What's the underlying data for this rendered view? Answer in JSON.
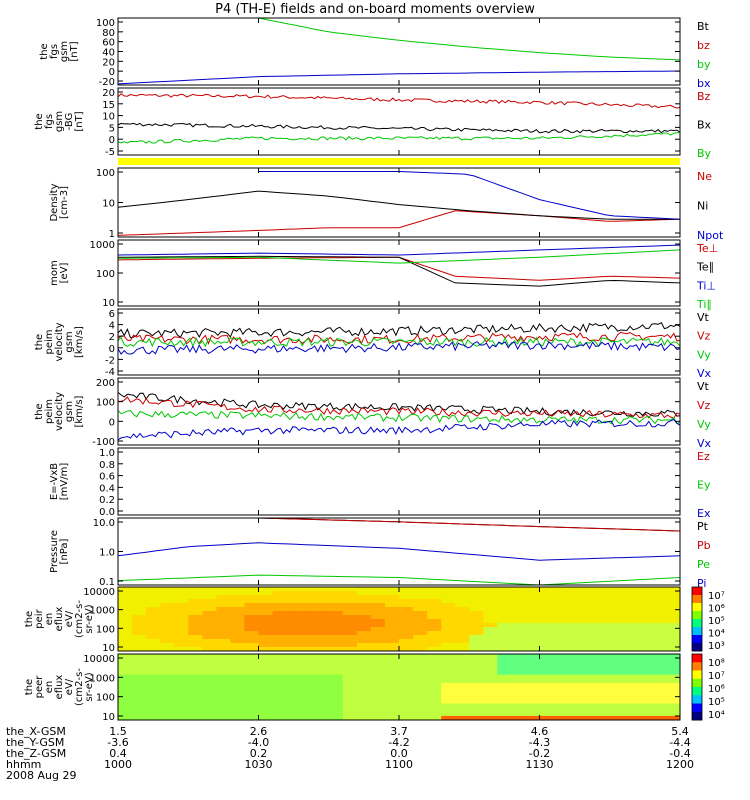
{
  "title": "P4 (TH-E) fields and on-board moments overview",
  "chart_data": [
    {
      "type": "line",
      "ylabel": [
        "the",
        "fgs",
        "gsm",
        "[nT]"
      ],
      "yticks": [
        "100",
        "80",
        "60",
        "40",
        "20",
        "0",
        "-20"
      ],
      "ylim": [
        -20,
        100
      ],
      "series": [
        {
          "name": "Bt",
          "color": "#000000",
          "x": [
            10.0,
            12.0
          ],
          "y": [
            null,
            null
          ]
        },
        {
          "name": "bz",
          "color": "#c80000",
          "x": [
            10.0,
            12.0
          ],
          "y": [
            null,
            null
          ]
        },
        {
          "name": "by",
          "color": "#00c800",
          "x": [
            10.5,
            10.75,
            11.0,
            11.25,
            11.5,
            11.75,
            12.0
          ],
          "y": [
            100,
            75,
            60,
            48,
            38,
            30,
            25
          ]
        },
        {
          "name": "bx",
          "color": "#0000c8",
          "x": [
            10.0,
            10.5,
            11.0,
            11.5,
            12.0
          ],
          "y": [
            -18,
            -5,
            0,
            3,
            5
          ]
        }
      ]
    },
    {
      "type": "line",
      "ylabel": [
        "the",
        "fgs",
        "gsm",
        "-BG",
        "[nT]"
      ],
      "yticks": [
        "20",
        "15",
        "10",
        "5",
        "0",
        "-5"
      ],
      "ylim": [
        -8,
        20
      ],
      "series": [
        {
          "name": "Bz",
          "color": "#c80000",
          "x": [
            10.0,
            10.5,
            11.0,
            11.5,
            12.0
          ],
          "y": [
            17,
            16.5,
            15,
            14,
            12
          ]
        },
        {
          "name": "Bx",
          "color": "#000000",
          "x": [
            10.0,
            10.5,
            11.0,
            11.5,
            12.0
          ],
          "y": [
            5,
            4,
            3,
            2,
            2
          ]
        },
        {
          "name": "By",
          "color": "#00c800",
          "x": [
            10.0,
            10.5,
            11.0,
            11.5,
            12.0
          ],
          "y": [
            -3,
            -1,
            -1,
            -1,
            1
          ]
        }
      ]
    },
    {
      "type": "line",
      "ylabel": [
        "Density",
        "[cm-3]"
      ],
      "yticks": [
        "100",
        "10",
        "1"
      ],
      "yscale": "log",
      "ylim": [
        0.7,
        200
      ],
      "series": [
        {
          "name": "Ne",
          "color": "#c80000",
          "x": [
            10.0,
            10.5,
            10.75,
            11.0,
            11.2,
            11.5,
            11.75,
            12.0
          ],
          "y": [
            0.8,
            1.2,
            1.5,
            1.5,
            6,
            4,
            2.5,
            3
          ]
        },
        {
          "name": "Ni",
          "color": "#000000",
          "x": [
            10.0,
            10.25,
            10.5,
            10.75,
            11.0,
            11.25,
            11.5,
            11.75,
            12.0
          ],
          "y": [
            8,
            15,
            30,
            20,
            10,
            6,
            4,
            3,
            3
          ]
        },
        {
          "name": "Npot",
          "color": "#0000c8",
          "x": [
            10.5,
            11.0,
            11.25,
            11.5,
            11.75,
            12.0
          ],
          "y": [
            150,
            150,
            120,
            15,
            4,
            3
          ]
        }
      ]
    },
    {
      "type": "line",
      "ylabel": [
        "mom",
        "[eV]"
      ],
      "yticks": [
        "1000",
        "100",
        "10"
      ],
      "yscale": "log",
      "ylim": [
        10,
        1000
      ],
      "series": [
        {
          "name": "Te⊥",
          "color": "#c80000",
          "x": [
            10.0,
            10.5,
            11.0,
            11.2,
            11.5,
            11.75,
            12.0
          ],
          "y": [
            250,
            280,
            300,
            80,
            60,
            80,
            70
          ]
        },
        {
          "name": "Te∥",
          "color": "#000000",
          "x": [
            10.0,
            10.5,
            11.0,
            11.2,
            11.5,
            11.75,
            12.0
          ],
          "y": [
            300,
            320,
            300,
            50,
            40,
            60,
            50
          ]
        },
        {
          "name": "Ti⊥",
          "color": "#0000c8",
          "x": [
            10.0,
            10.5,
            11.0,
            11.5,
            12.0
          ],
          "y": [
            350,
            400,
            350,
            500,
            700
          ]
        },
        {
          "name": "Ti∥",
          "color": "#00c800",
          "x": [
            10.0,
            10.5,
            11.0,
            11.5,
            12.0
          ],
          "y": [
            280,
            300,
            200,
            300,
            500
          ]
        }
      ]
    },
    {
      "type": "line",
      "ylabel": [
        "the",
        "peim",
        "velocity",
        "gsm",
        "[km/s]"
      ],
      "yticks": [
        "6",
        "4",
        "2",
        "0",
        "-2",
        "-4"
      ],
      "ylim": [
        -5,
        7
      ],
      "series": [
        {
          "name": "Vt",
          "color": "#000000",
          "x": [
            10.0,
            11.0,
            11.5,
            12.0
          ],
          "y": [
            2.5,
            3.0,
            3.5,
            4
          ]
        },
        {
          "name": "Vz",
          "color": "#c80000",
          "x": [
            10.0,
            11.0,
            11.5,
            12.0
          ],
          "y": [
            1.5,
            1.5,
            2.0,
            2
          ]
        },
        {
          "name": "Vy",
          "color": "#00c800",
          "x": [
            10.0,
            11.0,
            11.5,
            12.0
          ],
          "y": [
            1.0,
            1.0,
            1.0,
            1
          ]
        },
        {
          "name": "Vx",
          "color": "#0000c8",
          "x": [
            10.0,
            11.0,
            11.5,
            12.0
          ],
          "y": [
            -0.5,
            0.0,
            0.5,
            0
          ]
        }
      ]
    },
    {
      "type": "line",
      "ylabel": [
        "the",
        "peim",
        "velocity",
        "gsm",
        "[km/s]"
      ],
      "yticks": [
        "200",
        "100",
        "0",
        "-100"
      ],
      "ylim": [
        -110,
        210
      ],
      "series": [
        {
          "name": "Vt",
          "color": "#000000",
          "x": [
            10.0,
            10.5,
            11.0,
            11.5,
            12.0
          ],
          "y": [
            130,
            80,
            70,
            50,
            40
          ]
        },
        {
          "name": "Vz",
          "color": "#c80000",
          "x": [
            10.0,
            10.5,
            11.0,
            11.5,
            12.0
          ],
          "y": [
            110,
            60,
            50,
            40,
            30
          ]
        },
        {
          "name": "Vy",
          "color": "#00c800",
          "x": [
            10.0,
            10.5,
            11.0,
            11.5,
            12.0
          ],
          "y": [
            40,
            30,
            20,
            10,
            10
          ]
        },
        {
          "name": "Vx",
          "color": "#0000c8",
          "x": [
            10.0,
            10.5,
            11.0,
            11.5,
            12.0
          ],
          "y": [
            -70,
            -40,
            -40,
            -10,
            -5
          ]
        }
      ]
    },
    {
      "type": "line",
      "ylabel": [
        "E=-VxB",
        "[mV/m]"
      ],
      "yticks": [
        "1.0",
        "0.8",
        "0.6",
        "0.4",
        "0.2",
        "0.0"
      ],
      "ylim": [
        0,
        1
      ],
      "series": [
        {
          "name": "Ez",
          "color": "#c80000",
          "x": [],
          "y": []
        },
        {
          "name": "Ey",
          "color": "#00c800",
          "x": [],
          "y": []
        },
        {
          "name": "Ex",
          "color": "#0000c8",
          "x": [],
          "y": []
        }
      ]
    },
    {
      "type": "line",
      "ylabel": [
        "Pressure",
        "[nPa]"
      ],
      "yticks": [
        "10.0",
        "1.0",
        "0.1"
      ],
      "yscale": "log",
      "ylim": [
        0.02,
        10
      ],
      "series": [
        {
          "name": "Pt",
          "color": "#000000",
          "x": [
            10.5,
            11.0,
            11.5,
            12.0
          ],
          "y": [
            10,
            7,
            4.5,
            3
          ]
        },
        {
          "name": "Pb",
          "color": "#c80000",
          "x": [
            10.5,
            11.0,
            11.5,
            12.0
          ],
          "y": [
            10,
            7,
            4.5,
            3
          ]
        },
        {
          "name": "Pe",
          "color": "#00c800",
          "x": [
            10.0,
            10.5,
            11.0,
            11.5,
            12.0
          ],
          "y": [
            0.03,
            0.05,
            0.04,
            0.02,
            0.04
          ]
        },
        {
          "name": "Pi",
          "color": "#0000c8",
          "x": [
            10.0,
            10.25,
            10.5,
            11.0,
            11.5,
            12.0
          ],
          "y": [
            0.3,
            0.7,
            1.0,
            0.6,
            0.2,
            0.3
          ]
        }
      ]
    },
    {
      "type": "heatmap",
      "ylabel": [
        "the",
        "peir",
        "en",
        "eflux",
        "eV/",
        "(cm2-s-",
        "sr-eV)"
      ],
      "yticks": [
        "10000",
        "1000",
        "100",
        "10"
      ],
      "yscale": "log",
      "ylim": [
        10,
        20000
      ],
      "colorbar_ticks": [
        "10⁷",
        "10⁶",
        "10⁵",
        "10⁴",
        "10³"
      ]
    },
    {
      "type": "heatmap",
      "ylabel": [
        "the",
        "peer",
        "en",
        "eflux",
        "eV/",
        "(cm2-s-",
        "sr-eV)"
      ],
      "yticks": [
        "10000",
        "1000",
        "100",
        "10"
      ],
      "yscale": "log",
      "ylim": [
        10,
        20000
      ],
      "colorbar_ticks": [
        "10⁸",
        "10⁷",
        "10⁶",
        "10⁵",
        "10⁴"
      ]
    }
  ],
  "xaxis": {
    "rows": [
      {
        "label": "the_X-GSM",
        "values": [
          "1.5",
          "2.6",
          "3.7",
          "4.6",
          "5.4"
        ]
      },
      {
        "label": "the_Y-GSM",
        "values": [
          "-3.6",
          "-4.0",
          "-4.2",
          "-4.3",
          "-4.4"
        ]
      },
      {
        "label": "the_Z-GSM",
        "values": [
          "0.4",
          "0.2",
          "0.0",
          "-0.2",
          "-0.4"
        ]
      },
      {
        "label": "hhmm",
        "values": [
          "1000",
          "1030",
          "1100",
          "1130",
          "1200"
        ]
      }
    ],
    "date": "2008 Aug 29",
    "xlim": [
      10.0,
      12.0
    ]
  }
}
